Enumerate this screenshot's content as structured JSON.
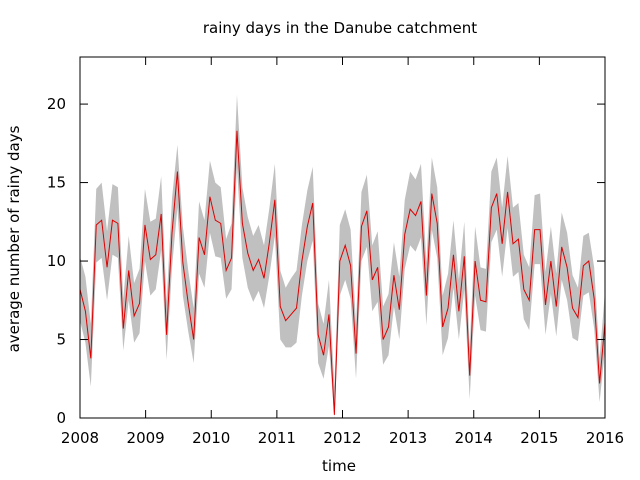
{
  "chart_data": {
    "type": "line",
    "title": "rainy days in the Danube catchment",
    "xlabel": "time",
    "ylabel": "average number of rainy days",
    "xlim": [
      2008,
      2016
    ],
    "ylim": [
      0,
      23
    ],
    "x_ticks": [
      "2008",
      "2009",
      "2010",
      "2011",
      "2012",
      "2013",
      "2014",
      "2015",
      "2016"
    ],
    "y_ticks": [
      "0",
      "5",
      "10",
      "15",
      "20"
    ],
    "grid": false,
    "legend": "none",
    "colors": {
      "line": "#dd0000",
      "band": "#c0c0c0",
      "axes": "#000000"
    },
    "series": [
      {
        "values": [
          8.2,
          6.8,
          3.8,
          12.3,
          12.6,
          9.6,
          12.6,
          12.4,
          5.7,
          9.4,
          6.5,
          7.3,
          12.3,
          10.1,
          10.4,
          13.0,
          5.3,
          11.8,
          15.7,
          9.9,
          7.3,
          5.0,
          11.5,
          10.4,
          14.1,
          12.6,
          12.4,
          9.4,
          10.2,
          18.3,
          12.4,
          10.5,
          9.4,
          10.1,
          8.9,
          11.2,
          13.9,
          7.1,
          6.2,
          6.6,
          7.0,
          10.0,
          12.2,
          13.7,
          5.3,
          4.0,
          6.6,
          0.2,
          10.0,
          11.0,
          9.7,
          4.1,
          12.2,
          13.2,
          8.8,
          9.6,
          5.0,
          5.8,
          9.1,
          6.9,
          11.7,
          13.3,
          12.9,
          13.8,
          7.8,
          14.3,
          12.4,
          5.8,
          7.0,
          10.4,
          6.8,
          10.3,
          2.7,
          10.0,
          7.5,
          7.4,
          13.4,
          14.3,
          11.1,
          14.4,
          11.1,
          11.4,
          8.2,
          7.5,
          12.0,
          12.0,
          7.2,
          10.0,
          7.1,
          10.9,
          9.6,
          7.0,
          6.4,
          9.7,
          10.0,
          7.6,
          2.2,
          6.1
        ],
        "lower": [
          6.2,
          4.8,
          2.0,
          9.9,
          10.2,
          7.5,
          10.4,
          10.2,
          4.3,
          7.5,
          4.8,
          5.4,
          10.0,
          7.8,
          8.2,
          10.7,
          3.7,
          9.6,
          13.4,
          7.8,
          5.5,
          3.5,
          9.2,
          8.3,
          11.8,
          10.3,
          10.2,
          7.6,
          8.2,
          16.0,
          10.2,
          8.3,
          7.4,
          8.1,
          7.0,
          9.1,
          11.6,
          5.0,
          4.5,
          4.5,
          4.8,
          7.8,
          10.0,
          11.3,
          3.5,
          2.5,
          4.6,
          0.0,
          7.8,
          8.8,
          7.6,
          2.5,
          10.0,
          10.9,
          6.8,
          7.4,
          3.4,
          4.0,
          7.1,
          5.0,
          9.5,
          11.0,
          10.6,
          11.5,
          5.9,
          12.0,
          10.2,
          4.0,
          5.1,
          8.3,
          5.0,
          8.2,
          1.2,
          7.8,
          5.6,
          5.5,
          11.2,
          12.0,
          9.0,
          12.1,
          9.0,
          9.3,
          6.3,
          5.6,
          9.8,
          9.8,
          5.3,
          7.9,
          5.2,
          8.8,
          7.5,
          5.1,
          4.9,
          7.8,
          8.0,
          5.7,
          1.0,
          4.4
        ],
        "upper": [
          10.3,
          9.0,
          6.0,
          14.6,
          15.0,
          11.9,
          14.9,
          14.7,
          7.6,
          11.6,
          8.6,
          9.5,
          14.6,
          12.5,
          12.7,
          15.4,
          7.4,
          14.0,
          17.4,
          12.2,
          9.4,
          7.0,
          13.8,
          12.6,
          16.4,
          15.0,
          14.7,
          11.4,
          12.4,
          20.6,
          14.7,
          12.8,
          11.6,
          12.3,
          11.0,
          13.4,
          16.2,
          9.4,
          8.3,
          8.9,
          9.4,
          12.3,
          14.5,
          16.0,
          7.3,
          6.0,
          8.8,
          2.0,
          12.3,
          13.3,
          12.0,
          6.0,
          14.4,
          15.5,
          11.0,
          11.9,
          7.1,
          7.9,
          11.2,
          9.0,
          13.9,
          15.7,
          15.2,
          16.2,
          9.9,
          16.6,
          14.7,
          7.8,
          9.2,
          12.6,
          8.8,
          12.5,
          4.5,
          12.2,
          9.6,
          9.5,
          15.7,
          16.6,
          13.4,
          16.7,
          13.4,
          13.7,
          10.4,
          9.6,
          14.2,
          14.3,
          9.3,
          12.2,
          9.2,
          13.1,
          11.8,
          9.1,
          8.3,
          11.6,
          11.8,
          9.6,
          3.8,
          8.1
        ]
      }
    ]
  }
}
